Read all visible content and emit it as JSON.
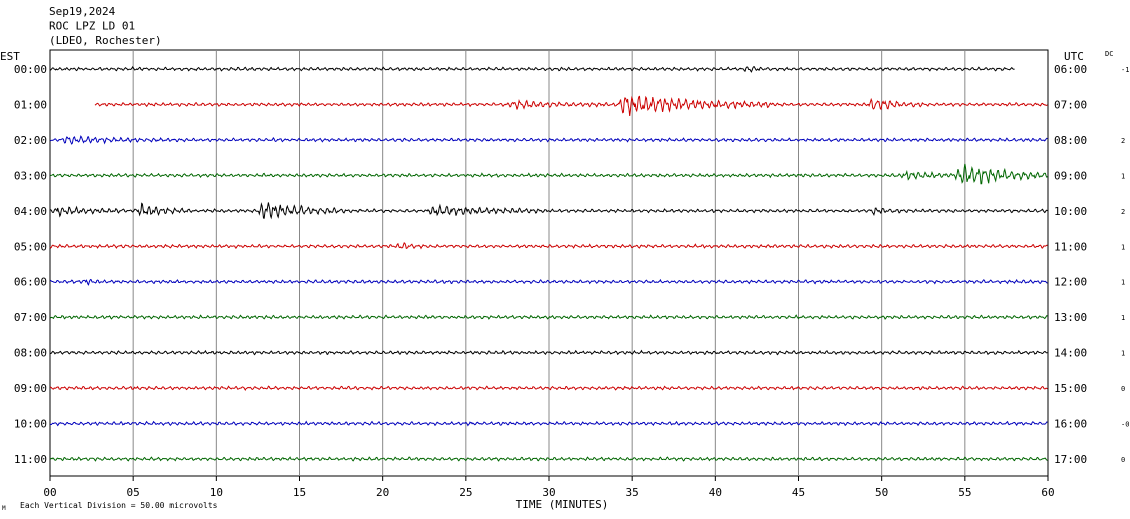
{
  "chart_data": {
    "type": "line",
    "title_lines": [
      "Sep19,2024",
      "ROC LPZ LD 01",
      "(LDEO, Rochester)"
    ],
    "left_header": "EST",
    "right_header": "UTC",
    "dc_header": "DC",
    "xlabel": "TIME (MINUTES)",
    "x_ticks": [
      "00",
      "05",
      "10",
      "15",
      "20",
      "25",
      "30",
      "35",
      "40",
      "45",
      "50",
      "55",
      "60"
    ],
    "xlim": [
      0,
      60
    ],
    "footer_note": "Each Vertical Division =   50.00 microvolts",
    "footer_mark": "M",
    "grid": true,
    "trace_colors": [
      "#000000",
      "#cc0000",
      "#0000bb",
      "#006600"
    ],
    "rows": [
      {
        "est": "00:00",
        "utc": "06:00",
        "dc": "-1",
        "start": 0,
        "end": 58,
        "events": [
          {
            "t": 42,
            "amp": 1.3,
            "dur": 0.8
          }
        ]
      },
      {
        "est": "01:00",
        "utc": "07:00",
        "dc": "",
        "start": 2.7,
        "end": 60,
        "events": [
          {
            "t": 34.5,
            "amp": 4.2,
            "dur": 9
          },
          {
            "t": 49.5,
            "amp": 2.4,
            "dur": 3
          },
          {
            "t": 28,
            "amp": 1.4,
            "dur": 6
          }
        ]
      },
      {
        "est": "02:00",
        "utc": "08:00",
        "dc": "2",
        "start": 0,
        "end": 60,
        "events": [
          {
            "t": 1,
            "amp": 1.3,
            "dur": 6
          }
        ]
      },
      {
        "est": "03:00",
        "utc": "09:00",
        "dc": "1",
        "start": 0,
        "end": 60,
        "events": [
          {
            "t": 54.8,
            "amp": 5.0,
            "dur": 5.5
          },
          {
            "t": 51.5,
            "amp": 1.6,
            "dur": 3
          }
        ]
      },
      {
        "est": "04:00",
        "utc": "10:00",
        "dc": "2",
        "start": 0,
        "end": 60,
        "events": [
          {
            "t": 0.5,
            "amp": 1.8,
            "dur": 4
          },
          {
            "t": 5.5,
            "amp": 2.4,
            "dur": 3
          },
          {
            "t": 12.8,
            "amp": 3.6,
            "dur": 5
          },
          {
            "t": 23,
            "amp": 2.0,
            "dur": 7
          },
          {
            "t": 49.5,
            "amp": 1.0,
            "dur": 2
          }
        ]
      },
      {
        "est": "05:00",
        "utc": "11:00",
        "dc": "1",
        "start": 0,
        "end": 60,
        "events": [
          {
            "t": 21.2,
            "amp": 1.5,
            "dur": 0.6
          }
        ]
      },
      {
        "est": "06:00",
        "utc": "12:00",
        "dc": "1",
        "start": 0,
        "end": 60,
        "events": [
          {
            "t": 2.2,
            "amp": 1.2,
            "dur": 0.8
          }
        ]
      },
      {
        "est": "07:00",
        "utc": "13:00",
        "dc": "1",
        "start": 0,
        "end": 60,
        "events": []
      },
      {
        "est": "08:00",
        "utc": "14:00",
        "dc": "1",
        "start": 0,
        "end": 60,
        "events": []
      },
      {
        "est": "09:00",
        "utc": "15:00",
        "dc": "0",
        "start": 0,
        "end": 60,
        "events": []
      },
      {
        "est": "10:00",
        "utc": "16:00",
        "dc": "-0",
        "start": 0,
        "end": 60,
        "events": []
      },
      {
        "est": "11:00",
        "utc": "17:00",
        "dc": "0",
        "start": 0,
        "end": 60,
        "events": []
      }
    ]
  }
}
